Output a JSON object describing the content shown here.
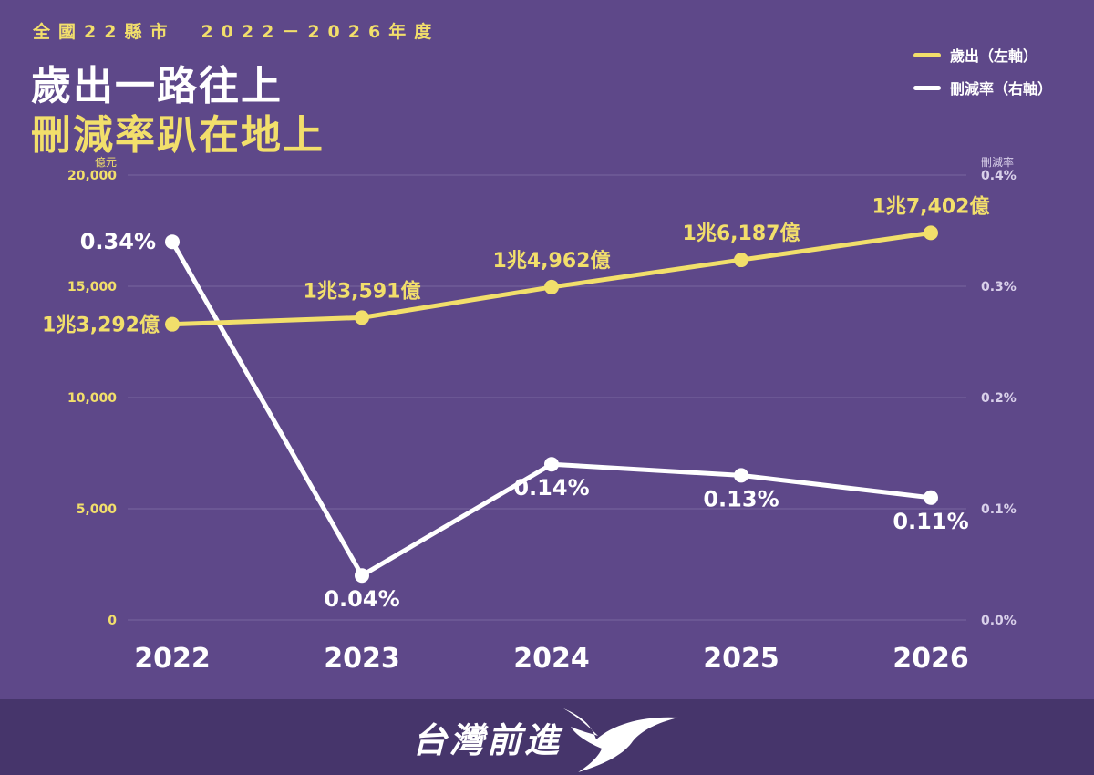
{
  "header": {
    "subtitle": "全國22縣市　2022－2026年度",
    "title_line1": "歲出一路往上",
    "title_line2": "刪減率趴在地上"
  },
  "legend": {
    "items": [
      {
        "label": "歲出（左軸）",
        "color": "#f2df6b"
      },
      {
        "label": "刪減率（右軸）",
        "color": "#ffffff"
      }
    ]
  },
  "footer": {
    "brand": "台灣前進",
    "logo_icon": "bird-logo-icon"
  },
  "colors": {
    "background": "#5e4889",
    "footer_bg": "#46356b",
    "accent_yellow": "#f2df6b",
    "white": "#ffffff",
    "grid": "#7866a0",
    "right_axis_text": "#d9d0ea"
  },
  "chart_data": {
    "type": "line",
    "x": [
      "2022",
      "2023",
      "2024",
      "2025",
      "2026"
    ],
    "y_left": {
      "unit_label": "億元",
      "ylim": [
        0,
        20000
      ],
      "ticks": [
        0,
        5000,
        10000,
        15000,
        20000
      ],
      "tick_labels": [
        "0",
        "5,000",
        "10,000",
        "15,000",
        "20,000"
      ]
    },
    "y_right": {
      "unit_label": "刪減率",
      "ylim": [
        0,
        0.4
      ],
      "ticks": [
        0,
        0.1,
        0.2,
        0.3,
        0.4
      ],
      "tick_labels": [
        "0.0%",
        "0.1%",
        "0.2%",
        "0.3%",
        "0.4%"
      ]
    },
    "grid": true,
    "legend_position": "top-right",
    "series": [
      {
        "name": "歲出（左軸）",
        "axis": "left",
        "color": "#f2df6b",
        "values": [
          13292,
          13591,
          14962,
          16187,
          17402
        ],
        "labels": [
          "1兆3,292億",
          "1兆3,591億",
          "1兆4,962億",
          "1兆6,187億",
          "1兆7,402億"
        ]
      },
      {
        "name": "刪減率（右軸）",
        "axis": "right",
        "color": "#ffffff",
        "values": [
          0.34,
          0.04,
          0.14,
          0.13,
          0.11
        ],
        "labels": [
          "0.34%",
          "0.04%",
          "0.14%",
          "0.13%",
          "0.11%"
        ]
      }
    ]
  }
}
